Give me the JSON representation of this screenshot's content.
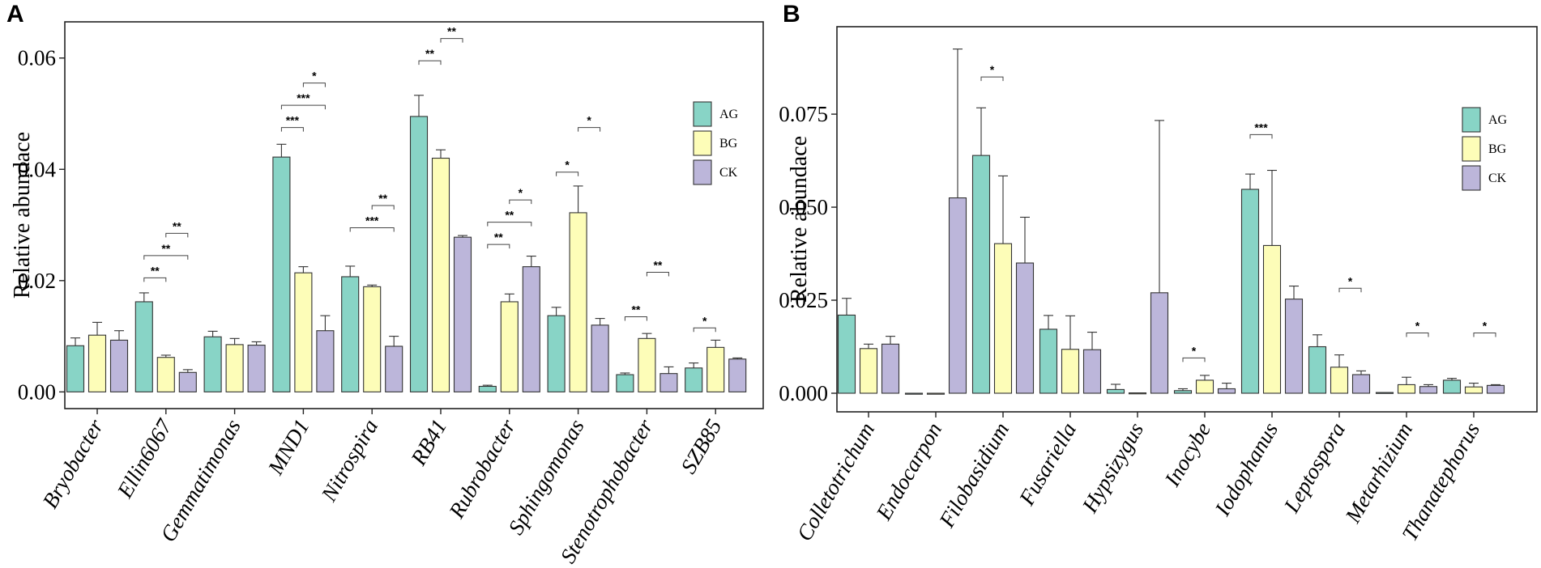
{
  "chart_data": [
    {
      "panel": "A",
      "type": "bar",
      "ylabel": "Relative abundace",
      "ylim": [
        -0.003,
        0.0665
      ],
      "yticks": [
        0.0,
        0.02,
        0.04,
        0.06
      ],
      "ytick_labels": [
        "0.00",
        "0.02",
        "0.04",
        "0.06"
      ],
      "categories": [
        "Bryobacter",
        "Ellin6067",
        "Gemmatimonas",
        "MND1",
        "Nitrospira",
        "RB41",
        "Rubrobacter",
        "Sphingomonas",
        "Stenotrophobacter",
        "SZB85"
      ],
      "legend_position": "top-right",
      "series": [
        {
          "name": "AG",
          "color": "#88d4c6",
          "values": [
            0.0083,
            0.0162,
            0.0099,
            0.0422,
            0.0207,
            0.0495,
            0.001,
            0.0137,
            0.0031,
            0.0043
          ],
          "errors": [
            0.0014,
            0.0016,
            0.001,
            0.0023,
            0.0019,
            0.0038,
            0.0002,
            0.0015,
            0.0003,
            0.0009
          ]
        },
        {
          "name": "BG",
          "color": "#fdfdb8",
          "values": [
            0.0102,
            0.0062,
            0.0085,
            0.0214,
            0.0189,
            0.042,
            0.0162,
            0.0322,
            0.0096,
            0.008
          ],
          "errors": [
            0.0023,
            0.0004,
            0.0011,
            0.0011,
            0.0003,
            0.0015,
            0.0014,
            0.0048,
            0.0009,
            0.0013
          ]
        },
        {
          "name": "CK",
          "color": "#bcb6da",
          "values": [
            0.0093,
            0.0035,
            0.0084,
            0.011,
            0.0082,
            0.0278,
            0.0225,
            0.012,
            0.0033,
            0.0059
          ],
          "errors": [
            0.0017,
            0.0005,
            0.0006,
            0.0027,
            0.0018,
            0.0003,
            0.0019,
            0.0012,
            0.0012,
            0.0002
          ]
        }
      ],
      "significance": [
        {
          "category": 1,
          "from": 0,
          "to": 1,
          "y": 0.0205,
          "label": "**"
        },
        {
          "category": 1,
          "from": 0,
          "to": 2,
          "y": 0.0245,
          "label": "**"
        },
        {
          "category": 1,
          "from": 1,
          "to": 2,
          "y": 0.0285,
          "label": "**"
        },
        {
          "category": 3,
          "from": 0,
          "to": 1,
          "y": 0.0475,
          "label": "***"
        },
        {
          "category": 3,
          "from": 0,
          "to": 2,
          "y": 0.0515,
          "label": "***"
        },
        {
          "category": 3,
          "from": 1,
          "to": 2,
          "y": 0.0555,
          "label": "*"
        },
        {
          "category": 4,
          "from": 0,
          "to": 2,
          "y": 0.0295,
          "label": "***"
        },
        {
          "category": 4,
          "from": 1,
          "to": 2,
          "y": 0.0335,
          "label": "**"
        },
        {
          "category": 5,
          "from": 0,
          "to": 1,
          "y": 0.0595,
          "label": "**"
        },
        {
          "category": 5,
          "from": 1,
          "to": 2,
          "y": 0.0635,
          "label": "**"
        },
        {
          "category": 6,
          "from": 0,
          "to": 1,
          "y": 0.0265,
          "label": "**"
        },
        {
          "category": 6,
          "from": 0,
          "to": 2,
          "y": 0.0305,
          "label": "**"
        },
        {
          "category": 6,
          "from": 1,
          "to": 2,
          "y": 0.0345,
          "label": "*"
        },
        {
          "category": 7,
          "from": 0,
          "to": 1,
          "y": 0.0395,
          "label": "*"
        },
        {
          "category": 7,
          "from": 1,
          "to": 2,
          "y": 0.0475,
          "label": "*"
        },
        {
          "category": 8,
          "from": 0,
          "to": 1,
          "y": 0.0135,
          "label": "**"
        },
        {
          "category": 8,
          "from": 1,
          "to": 2,
          "y": 0.0215,
          "label": "**"
        },
        {
          "category": 9,
          "from": 0,
          "to": 1,
          "y": 0.0115,
          "label": "*"
        }
      ]
    },
    {
      "panel": "B",
      "type": "bar",
      "ylabel": "Relative abundace",
      "ylim": [
        -0.005,
        0.0985
      ],
      "yticks": [
        0.0,
        0.025,
        0.05,
        0.075
      ],
      "ytick_labels": [
        "0.000",
        "0.025",
        "0.050",
        "0.075"
      ],
      "categories": [
        "Colletotrichum",
        "Endocarpon",
        "Filobasidium",
        "Fusariella",
        "Hypsizygus",
        "Inocybe",
        "Iodophanus",
        "Leptospora",
        "Metarhizium",
        "Thanatephorus"
      ],
      "legend_position": "top-right",
      "series": [
        {
          "name": "AG",
          "color": "#88d4c6",
          "values": [
            0.021,
            0.0,
            0.0639,
            0.0172,
            0.001,
            0.0007,
            0.0548,
            0.0125,
            0.0002,
            0.0035
          ],
          "errors": [
            0.0045,
            0.0,
            0.0128,
            0.0037,
            0.0014,
            0.0005,
            0.0041,
            0.0032,
            0.0,
            0.0005
          ]
        },
        {
          "name": "BG",
          "color": "#fdfdb8",
          "values": [
            0.012,
            0.0,
            0.0402,
            0.0118,
            0.0001,
            0.0035,
            0.0397,
            0.007,
            0.0023,
            0.0017
          ],
          "errors": [
            0.0012,
            0.0,
            0.0182,
            0.009,
            0.0,
            0.0013,
            0.0202,
            0.0033,
            0.002,
            0.001
          ]
        },
        {
          "name": "CK",
          "color": "#bcb6da",
          "values": [
            0.0132,
            0.0525,
            0.035,
            0.0117,
            0.027,
            0.0012,
            0.0253,
            0.005,
            0.0018,
            0.0021
          ],
          "errors": [
            0.0021,
            0.04,
            0.0123,
            0.0047,
            0.0463,
            0.0015,
            0.0035,
            0.001,
            0.0005,
            0.0002
          ]
        }
      ],
      "significance": [
        {
          "category": 2,
          "from": 0,
          "to": 1,
          "y": 0.085,
          "label": "*"
        },
        {
          "category": 5,
          "from": 0,
          "to": 1,
          "y": 0.0095,
          "label": "*"
        },
        {
          "category": 6,
          "from": 0,
          "to": 1,
          "y": 0.0695,
          "label": "***"
        },
        {
          "category": 7,
          "from": 1,
          "to": 2,
          "y": 0.0282,
          "label": "*"
        },
        {
          "category": 8,
          "from": 1,
          "to": 2,
          "y": 0.0162,
          "label": "*"
        },
        {
          "category": 9,
          "from": 1,
          "to": 2,
          "y": 0.0162,
          "label": "*"
        }
      ]
    }
  ]
}
